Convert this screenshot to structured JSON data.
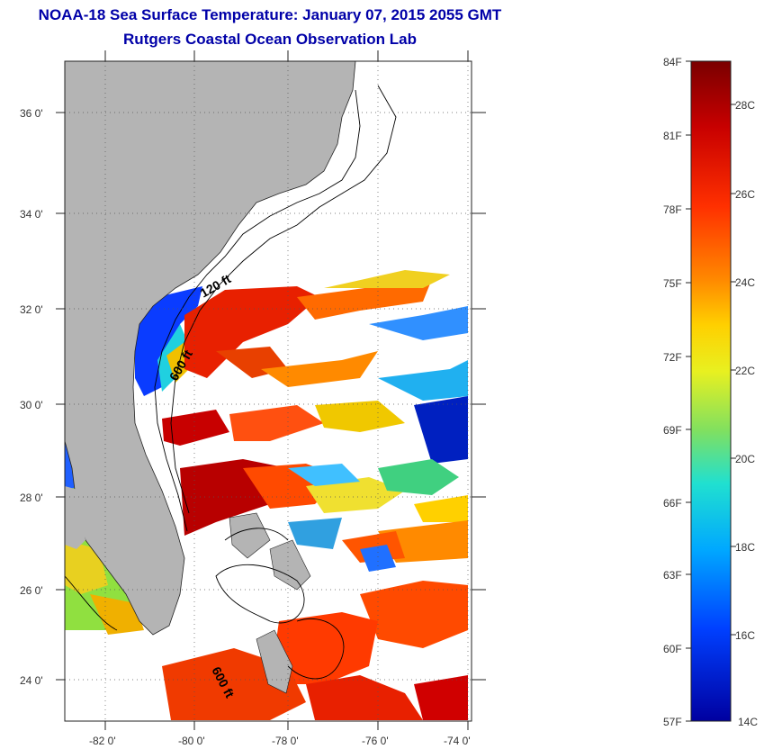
{
  "header": {
    "title": "NOAA-18 Sea Surface Temperature:  January 07, 2015 2055 GMT",
    "subtitle": "Rutgers Coastal Ocean Observation Lab"
  },
  "map": {
    "lat_labels": [
      "36 0'",
      "34 0'",
      "32 0'",
      "30 0'",
      "28 0'",
      "26 0'",
      "24 0'"
    ],
    "lon_labels": [
      "-82 0'",
      "-80 0'",
      "-78 0'",
      "-76 0'",
      "-74 0'"
    ],
    "contour_labels": {
      "c120": "120 ft",
      "c600a": "600 ft",
      "c600b": "600 ft"
    },
    "colors": {
      "land": "#b4b4b4",
      "ocean_cloud": "#ffffff"
    }
  },
  "colorbar": {
    "fahrenheit": [
      "84F",
      "81F",
      "78F",
      "75F",
      "72F",
      "69F",
      "66F",
      "63F",
      "60F",
      "57F"
    ],
    "celsius": [
      "28C",
      "26C",
      "24C",
      "22C",
      "20C",
      "18C",
      "16C",
      "14C"
    ],
    "gradient": [
      "#7a0000",
      "#c80000",
      "#ff3000",
      "#ff8800",
      "#ffd000",
      "#e8f020",
      "#80e060",
      "#20e0d0",
      "#00a8ff",
      "#0040ff",
      "#0000a0"
    ]
  }
}
